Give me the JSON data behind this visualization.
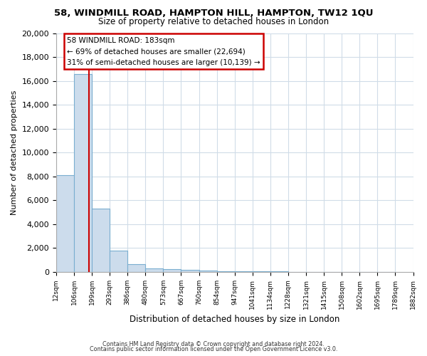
{
  "title": "58, WINDMILL ROAD, HAMPTON HILL, HAMPTON, TW12 1QU",
  "subtitle": "Size of property relative to detached houses in London",
  "xlabel": "Distribution of detached houses by size in London",
  "ylabel": "Number of detached properties",
  "bar_color": "#ccdcec",
  "bar_edge_color": "#7aaed0",
  "bar_heights": [
    8100,
    16600,
    5300,
    1750,
    650,
    280,
    200,
    160,
    100,
    60,
    40,
    30,
    20,
    15,
    10,
    8,
    5,
    4,
    3
  ],
  "x_tick_labels": [
    "12sqm",
    "106sqm",
    "199sqm",
    "293sqm",
    "386sqm",
    "480sqm",
    "573sqm",
    "667sqm",
    "760sqm",
    "854sqm",
    "947sqm",
    "1041sqm",
    "1134sqm",
    "1228sqm",
    "1321sqm",
    "1415sqm",
    "1508sqm",
    "1602sqm",
    "1695sqm",
    "1789sqm",
    "1882sqm"
  ],
  "ylim": [
    0,
    20000
  ],
  "yticks": [
    0,
    2000,
    4000,
    6000,
    8000,
    10000,
    12000,
    14000,
    16000,
    18000,
    20000
  ],
  "vline_color": "#cc0000",
  "annotation_title": "58 WINDMILL ROAD: 183sqm",
  "annotation_line1": "← 69% of detached houses are smaller (22,694)",
  "annotation_line2": "31% of semi-detached houses are larger (10,139) →",
  "annotation_box_color": "#ffffff",
  "annotation_box_edge": "#cc0000",
  "footer1": "Contains HM Land Registry data © Crown copyright and database right 2024.",
  "footer2": "Contains public sector information licensed under the Open Government Licence v3.0.",
  "background_color": "#ffffff",
  "grid_color": "#d0dce8"
}
